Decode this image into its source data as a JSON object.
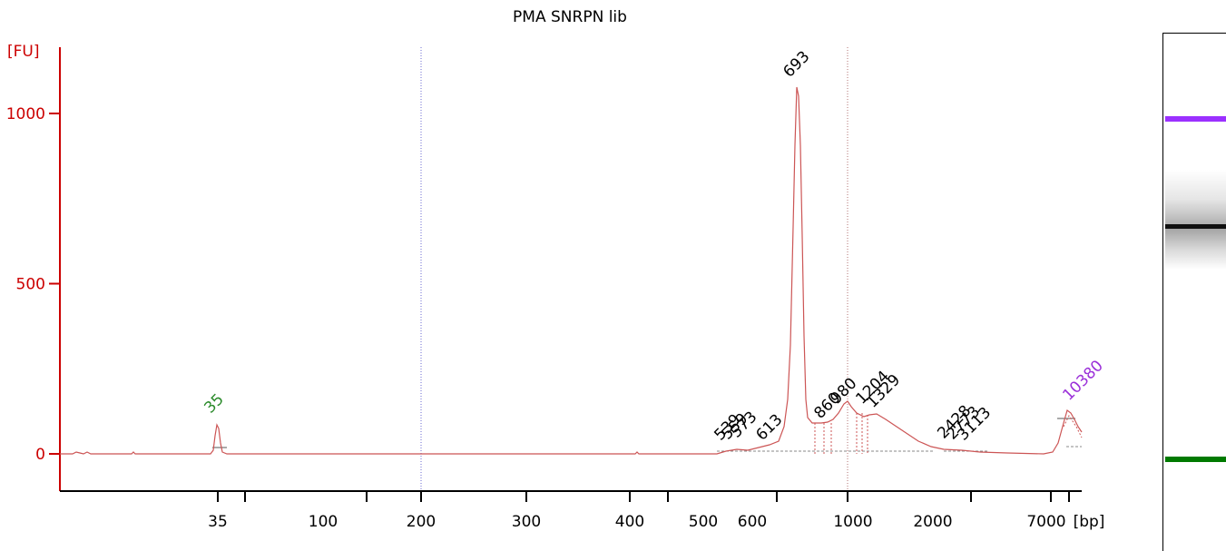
{
  "chart_data": {
    "type": "line",
    "title": "PMA SNRPN lib",
    "yunit": "[FU]",
    "xunit": "[bp]",
    "yticks": [
      0,
      500,
      1000
    ],
    "xticks": [
      "35",
      "100",
      "200",
      "300",
      "400",
      "500",
      "600",
      "1000",
      "2000",
      "7000"
    ],
    "series": [
      {
        "x": [
          "35",
          "693",
          "860",
          "980",
          "1204",
          "1329",
          "2428",
          "3113"
        ],
        "y": [
          85,
          1078,
          90,
          155,
          115,
          115,
          30,
          12
        ]
      }
    ],
    "peak_labels": [
      {
        "label": "35",
        "color": "#2a8a2a"
      },
      {
        "label": "693",
        "color": "#000000"
      },
      {
        "label": "539",
        "color": "#000000"
      },
      {
        "label": "559",
        "color": "#000000"
      },
      {
        "label": "573",
        "color": "#000000"
      },
      {
        "label": "613",
        "color": "#000000"
      },
      {
        "label": "860",
        "color": "#000000"
      },
      {
        "label": "980",
        "color": "#000000"
      },
      {
        "label": "1204",
        "color": "#000000"
      },
      {
        "label": "1329",
        "color": "#000000"
      },
      {
        "label": "2428",
        "color": "#000000"
      },
      {
        "label": "2773",
        "color": "#000000"
      },
      {
        "label": "3113",
        "color": "#000000"
      },
      {
        "label": "10380",
        "color": "#9b30d9"
      }
    ],
    "colors": {
      "trace": "#cc5555",
      "axis_y": "#cc0000",
      "marker_upper": "#9b30ff",
      "marker_lower": "#007a00"
    }
  }
}
